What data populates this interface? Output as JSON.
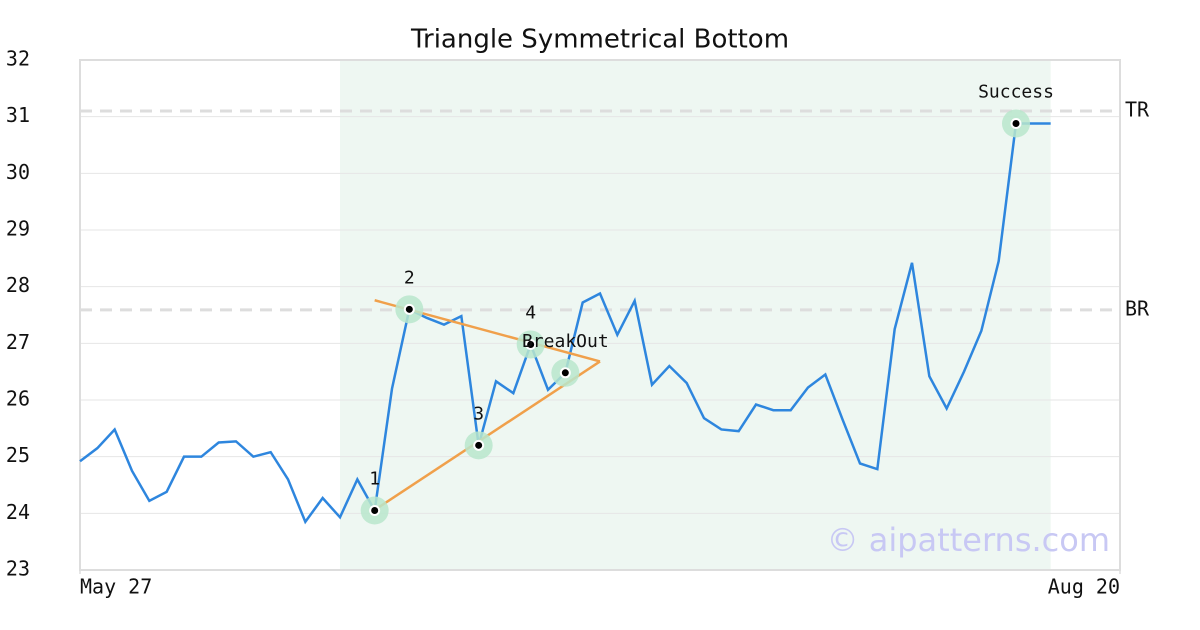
{
  "chart_data": {
    "type": "line",
    "title": "Triangle Symmetrical Bottom",
    "x": [
      0,
      1,
      2,
      3,
      4,
      5,
      6,
      7,
      8,
      9,
      10,
      11,
      12,
      13,
      14,
      15,
      16,
      17,
      18,
      19,
      20,
      21,
      22,
      23,
      24,
      25,
      26,
      27,
      28,
      29,
      30,
      31,
      32,
      33,
      34,
      35,
      36,
      37,
      38,
      39,
      40,
      41,
      42,
      43,
      44,
      45,
      46,
      47,
      48,
      49,
      50,
      51,
      52,
      53,
      54,
      55,
      56
    ],
    "series": [
      {
        "color": "#2e86de",
        "values": [
          24.92,
          25.15,
          25.48,
          24.75,
          24.22,
          24.38,
          25.0,
          25.0,
          25.25,
          25.27,
          25.0,
          25.08,
          24.6,
          23.85,
          24.27,
          23.93,
          24.6,
          24.05,
          26.2,
          27.6,
          27.45,
          27.33,
          27.48,
          25.2,
          26.33,
          26.12,
          26.98,
          26.18,
          26.48,
          27.72,
          27.88,
          27.15,
          27.75,
          26.27,
          26.6,
          26.3,
          25.68,
          25.48,
          25.45,
          25.92,
          25.82,
          25.82,
          26.22,
          26.45,
          25.65,
          24.88,
          24.78,
          27.25,
          28.42,
          26.42,
          25.85,
          26.5,
          27.22,
          28.45,
          30.88,
          30.88,
          30.88
        ]
      }
    ],
    "xlim": [
      0,
      60
    ],
    "ylim": [
      23,
      32
    ],
    "xticks": [
      {
        "value": 0,
        "label": "May 27"
      },
      {
        "value": 60,
        "label": "Aug 20"
      }
    ],
    "yticks": [
      23,
      24,
      25,
      26,
      27,
      28,
      29,
      30,
      31,
      32
    ],
    "grid": true,
    "shade_x": [
      15,
      56
    ],
    "shade_color": "#eef7f2",
    "levels": [
      {
        "label": "TR",
        "value": 31.1
      },
      {
        "label": "BR",
        "value": 27.59
      }
    ],
    "trend_lines": [
      {
        "color": "#f0a04b",
        "x": [
          17,
          30
        ],
        "y": [
          27.76,
          26.68
        ]
      },
      {
        "color": "#f0a04b",
        "x": [
          17,
          30
        ],
        "y": [
          24.06,
          26.68
        ]
      }
    ],
    "points": [
      {
        "label": "1",
        "x": 17,
        "y": 24.05
      },
      {
        "label": "2",
        "x": 19,
        "y": 27.6
      },
      {
        "label": "3",
        "x": 23,
        "y": 25.2
      },
      {
        "label": "4",
        "x": 26,
        "y": 26.98
      },
      {
        "label": "BreakOut",
        "x": 28,
        "y": 26.48
      },
      {
        "label": "Success",
        "x": 54,
        "y": 30.88
      }
    ],
    "watermark": "© aipatterns.com"
  }
}
